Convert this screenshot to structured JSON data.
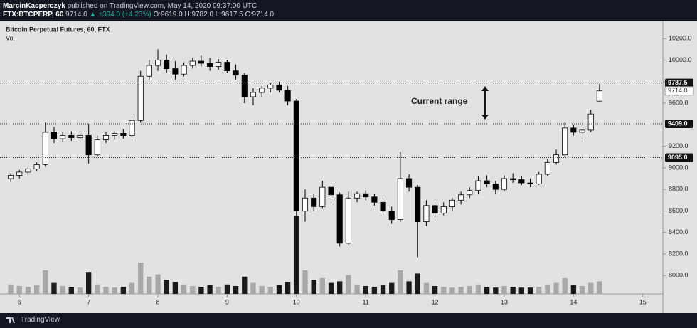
{
  "header": {
    "author": "MarcinKacperczyk",
    "published": "published on TradingView.com, May 14, 2020 09:37:00 UTC",
    "symbol": "FTX:BTCPERP, 60",
    "last": "9714.0",
    "change": "▲ +394.0 (+4.23%)",
    "ohlc": "O:9619.0 H:9782.0 L:9617.5 C:9714.0"
  },
  "footer": {
    "brand": "TradingView"
  },
  "chart_data": {
    "type": "candlestick",
    "title": "Bitcoin Perpetual Futures, 60, FTX",
    "volume_label": "Vol",
    "annotation": "Current range",
    "x": [
      5.875,
      6.0,
      6.125,
      6.25,
      6.375,
      6.5,
      6.625,
      6.75,
      6.875,
      7.0,
      7.125,
      7.25,
      7.375,
      7.5,
      7.625,
      7.75,
      7.875,
      8.0,
      8.125,
      8.25,
      8.375,
      8.5,
      8.625,
      8.75,
      8.875,
      9.0,
      9.125,
      9.25,
      9.375,
      9.5,
      9.625,
      9.75,
      9.875,
      10.0,
      10.125,
      10.25,
      10.375,
      10.5,
      10.625,
      10.75,
      10.875,
      11.0,
      11.125,
      11.25,
      11.375,
      11.5,
      11.625,
      11.75,
      11.875,
      12.0,
      12.125,
      12.25,
      12.375,
      12.5,
      12.625,
      12.75,
      12.875,
      13.0,
      13.125,
      13.25,
      13.375,
      13.5,
      13.625,
      13.75,
      13.875,
      14.0,
      14.125,
      14.25,
      14.375
    ],
    "open": [
      8900,
      8930,
      8960,
      8990,
      9030,
      9330,
      9270,
      9300,
      9280,
      9300,
      9120,
      9260,
      9300,
      9320,
      9300,
      9440,
      9850,
      9950,
      10000,
      9920,
      9870,
      9950,
      9990,
      9970,
      9940,
      9980,
      9900,
      9860,
      9660,
      9700,
      9740,
      9770,
      9720,
      9620,
      8600,
      8720,
      8640,
      8820,
      8750,
      8300,
      8720,
      8760,
      8730,
      8680,
      8600,
      8520,
      8900,
      8820,
      8500,
      8650,
      8580,
      8640,
      8700,
      8750,
      8790,
      8880,
      8850,
      8800,
      8900,
      8890,
      8860,
      8850,
      8940,
      9050,
      9120,
      9370,
      9330,
      9350,
      9619.0
    ],
    "high": [
      8950,
      8980,
      9010,
      9050,
      9420,
      9380,
      9330,
      9340,
      9320,
      9410,
      9300,
      9330,
      9340,
      9360,
      9480,
      9900,
      10000,
      10100,
      10050,
      9990,
      9980,
      10020,
      10040,
      10020,
      10010,
      10000,
      9960,
      9880,
      9740,
      9760,
      9790,
      9800,
      9760,
      9640,
      8800,
      8760,
      8880,
      8860,
      8770,
      8780,
      8780,
      8790,
      8760,
      8720,
      8640,
      9150,
      8940,
      8840,
      8700,
      8680,
      8680,
      8720,
      8780,
      8820,
      8920,
      8930,
      8880,
      8930,
      8950,
      8920,
      8900,
      8960,
      9080,
      9170,
      9420,
      9400,
      9380,
      9540,
      9782.0
    ],
    "low": [
      8870,
      8900,
      8930,
      8970,
      9010,
      9230,
      9240,
      9250,
      9240,
      9040,
      9100,
      9230,
      9260,
      9270,
      9280,
      9420,
      9820,
      9900,
      9880,
      9820,
      9850,
      9920,
      9940,
      9900,
      9910,
      9880,
      9820,
      9600,
      9580,
      9660,
      9700,
      9700,
      9580,
      7920,
      8500,
      8600,
      8620,
      8700,
      8270,
      8280,
      8680,
      8700,
      8650,
      8580,
      8480,
      8500,
      8780,
      8170,
      8460,
      8540,
      8560,
      8600,
      8660,
      8720,
      8760,
      8820,
      8760,
      8780,
      8860,
      8840,
      8820,
      8840,
      8920,
      9030,
      9100,
      9300,
      9270,
      9330,
      9617.5
    ],
    "close": [
      8930,
      8960,
      8990,
      9030,
      9330,
      9270,
      9300,
      9280,
      9300,
      9120,
      9260,
      9300,
      9320,
      9300,
      9440,
      9850,
      9950,
      10000,
      9920,
      9870,
      9950,
      9990,
      9970,
      9940,
      9980,
      9900,
      9860,
      9660,
      9700,
      9740,
      9770,
      9720,
      9620,
      8600,
      8720,
      8640,
      8820,
      8750,
      8300,
      8720,
      8760,
      8730,
      8680,
      8600,
      8520,
      8900,
      8820,
      8500,
      8650,
      8580,
      8640,
      8700,
      8750,
      8790,
      8880,
      8850,
      8800,
      8900,
      8890,
      8860,
      8850,
      8940,
      9050,
      9120,
      9370,
      9330,
      9350,
      9500,
      9714.0
    ],
    "volume": [
      12,
      10,
      9,
      11,
      30,
      14,
      10,
      9,
      8,
      28,
      12,
      9,
      8,
      9,
      14,
      40,
      22,
      25,
      18,
      15,
      12,
      10,
      9,
      11,
      9,
      12,
      10,
      22,
      14,
      10,
      9,
      11,
      15,
      100,
      30,
      18,
      20,
      14,
      16,
      24,
      12,
      10,
      9,
      11,
      14,
      30,
      16,
      26,
      14,
      10,
      9,
      8,
      9,
      10,
      12,
      9,
      8,
      10,
      9,
      8,
      8,
      9,
      12,
      14,
      20,
      11,
      10,
      14,
      16
    ],
    "ylim": [
      7830,
      10360
    ],
    "yticks": [
      {
        "value": 8000,
        "label": "8000.0"
      },
      {
        "value": 8200,
        "label": "8200.0"
      },
      {
        "value": 8400,
        "label": "8400.0"
      },
      {
        "value": 8600,
        "label": "8600.0"
      },
      {
        "value": 8800,
        "label": "8800.0"
      },
      {
        "value": 9000,
        "label": "9000.0"
      },
      {
        "value": 9200,
        "label": "9200.0"
      },
      {
        "value": 9400,
        "label": "9400.0"
      },
      {
        "value": 9600,
        "label": "9600.0"
      },
      {
        "value": 9800,
        "label": "9800.0"
      },
      {
        "value": 10000,
        "label": "10000.0"
      },
      {
        "value": 10200,
        "label": "10200.0"
      }
    ],
    "xlim": [
      5.72,
      15.29
    ],
    "xticks": [
      6,
      7,
      8,
      9,
      10,
      11,
      12,
      13,
      14,
      15
    ],
    "levels": [
      {
        "value": 9787.5,
        "label": "9787.5"
      },
      {
        "value": 9409,
        "label": "9409.0"
      },
      {
        "value": 9095,
        "label": "9095.0"
      }
    ],
    "last_price": {
      "value": 9714,
      "label": "9714.0"
    },
    "up_color": "#ffffff",
    "down_color": "#000000",
    "outline_color": "#000000",
    "volume_up_color": "#a8a8a8",
    "volume_down_color": "#1a1a1a"
  }
}
